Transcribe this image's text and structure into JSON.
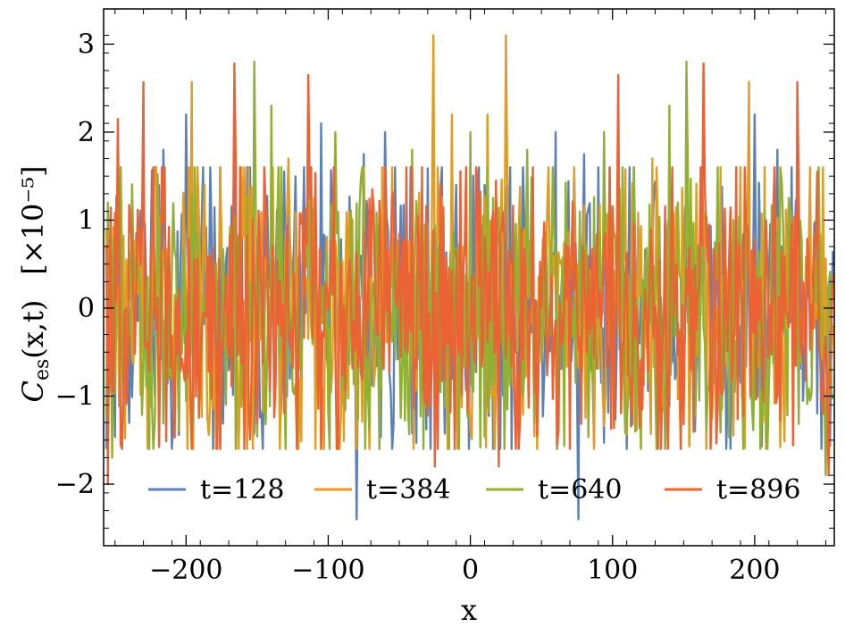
{
  "chart_data": {
    "type": "line",
    "title": "",
    "xlabel": "x",
    "ylabel_main": "C",
    "ylabel_sub": "es",
    "ylabel_args": "(x,t)",
    "ylabel_scale": "[×10⁻⁵]",
    "xlim": [
      -258,
      256
    ],
    "ylim": [
      -2.7,
      3.4
    ],
    "x_ticks": [
      -200,
      -100,
      0,
      100,
      200
    ],
    "x_tick_labels": [
      "−200",
      "−100",
      "0",
      "100",
      "200"
    ],
    "y_ticks": [
      -2,
      -1,
      0,
      1,
      2,
      3
    ],
    "y_tick_labels": [
      "−2",
      "−1",
      "0",
      "1",
      "2",
      "3"
    ],
    "grid": false,
    "legend_position": "bottom-center",
    "series": [
      {
        "name": "t=128",
        "color": "#5e81b5",
        "seed": 11,
        "spikes": [
          [
            -216,
            1.8
          ],
          [
            -200,
            2.2
          ],
          [
            -105,
            2.1
          ],
          [
            -80,
            -2.4
          ],
          [
            -75,
            1.75
          ],
          [
            -60,
            2.0
          ],
          [
            -10,
            1.4
          ],
          [
            10,
            1.4
          ],
          [
            60,
            2.0
          ],
          [
            76,
            -2.4
          ],
          [
            80,
            1.75
          ],
          [
            104,
            2.1
          ],
          [
            200,
            2.2
          ],
          [
            216,
            1.8
          ]
        ]
      },
      {
        "name": "t=384",
        "color": "#e19c24",
        "seed": 29,
        "spikes": [
          [
            -196,
            2.57
          ],
          [
            -176,
            1.6
          ],
          [
            -128,
            1.7
          ],
          [
            -26,
            3.1
          ],
          [
            -13,
            2.2
          ],
          [
            12,
            2.2
          ],
          [
            25,
            3.1
          ],
          [
            128,
            1.7
          ],
          [
            176,
            1.6
          ],
          [
            196,
            2.57
          ]
        ]
      },
      {
        "name": "t=640",
        "color": "#8fb032",
        "seed": 47,
        "spikes": [
          [
            -252,
            -1.7
          ],
          [
            -152,
            2.8
          ],
          [
            -140,
            2.3
          ],
          [
            -95,
            2.0
          ],
          [
            -41,
            1.8
          ],
          [
            0,
            2.0
          ],
          [
            40,
            1.8
          ],
          [
            94,
            2.0
          ],
          [
            140,
            2.3
          ],
          [
            152,
            2.8
          ],
          [
            250,
            -1.9
          ]
        ]
      },
      {
        "name": "t=896",
        "color": "#eb6235",
        "seed": 83,
        "spikes": [
          [
            -255,
            -2.0
          ],
          [
            -248,
            2.15
          ],
          [
            -230,
            2.57
          ],
          [
            -166,
            2.78
          ],
          [
            -114,
            2.65
          ],
          [
            -45,
            1.6
          ],
          [
            -25,
            -1.8
          ],
          [
            20,
            -1.8
          ],
          [
            44,
            1.6
          ],
          [
            104,
            2.65
          ],
          [
            164,
            2.78
          ],
          [
            230,
            2.57
          ],
          [
            252,
            -1.9
          ]
        ]
      }
    ]
  }
}
